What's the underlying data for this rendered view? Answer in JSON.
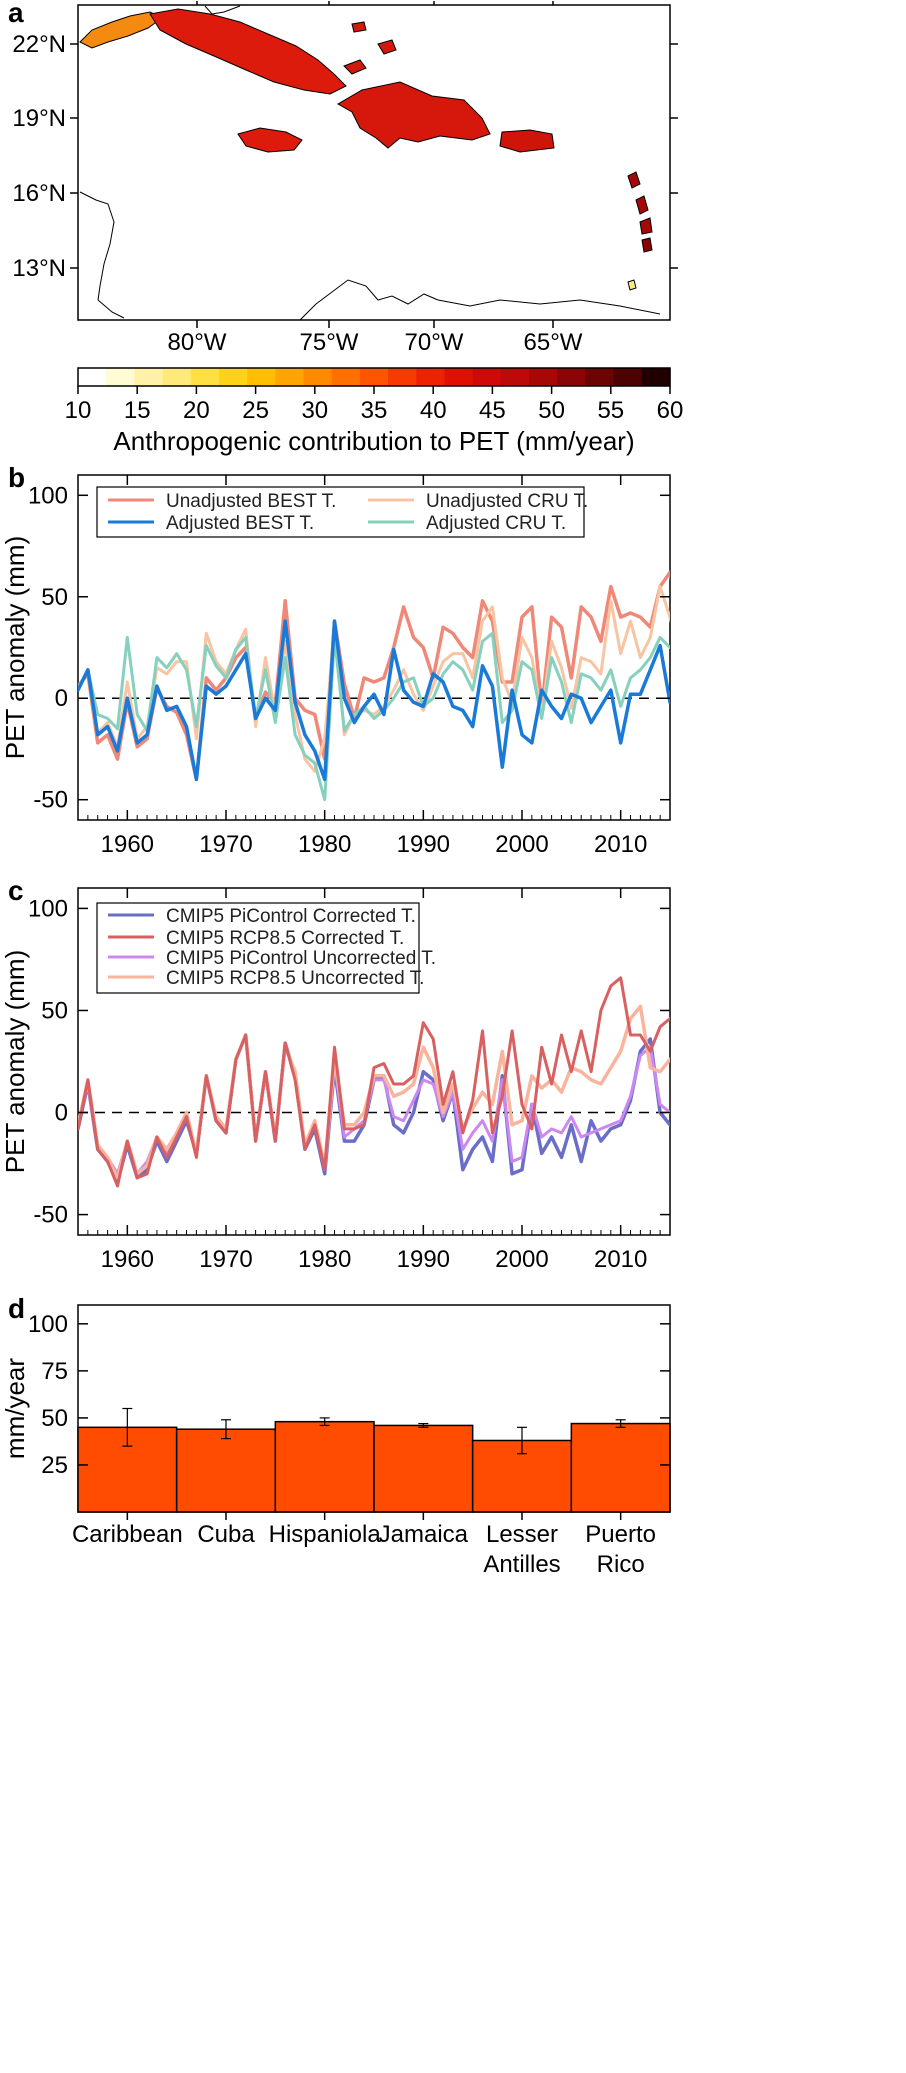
{
  "chart_data": [
    {
      "panel_label": "a",
      "type": "heatmap",
      "lat_ticks": [
        "22°N",
        "19°N",
        "16°N",
        "13°N"
      ],
      "lon_ticks": [
        "80°W",
        "75°W",
        "70°W",
        "65°W"
      ],
      "colorbar": {
        "label": "Anthropogenic contribution to PET (mm/year)",
        "range": [
          10,
          60
        ],
        "ticks": [
          10,
          15,
          20,
          25,
          30,
          35,
          40,
          45,
          50,
          55,
          60
        ],
        "colors": [
          "#ffffff",
          "#fffbd4",
          "#fff2a8",
          "#ffe97c",
          "#ffe044",
          "#ffd21a",
          "#ffbf00",
          "#ffa500",
          "#ff8a00",
          "#ff7000",
          "#ff5500",
          "#f83a00",
          "#ee2200",
          "#e01000",
          "#d00808",
          "#bc0a0a",
          "#a60808",
          "#8a0505",
          "#6c0404",
          "#4c0202",
          "#200000"
        ]
      }
    },
    {
      "panel_label": "b",
      "type": "line",
      "ylabel": "PET anomaly (mm)",
      "xlim": [
        1955,
        2015
      ],
      "ylim": [
        -60,
        110
      ],
      "xticks": [
        1960,
        1970,
        1980,
        1990,
        2000,
        2010
      ],
      "yticks": [
        -50,
        0,
        50,
        100
      ],
      "x_start": 1955,
      "series": [
        {
          "name": "Unadjusted BEST T.",
          "color": "#f08878",
          "width": 3.5,
          "values": [
            6,
            12,
            -22,
            -18,
            -30,
            -2,
            -24,
            -20,
            5,
            -4,
            -7,
            -18,
            -40,
            10,
            4,
            10,
            20,
            25,
            -10,
            3,
            -3,
            48,
            0,
            -6,
            -8,
            -30,
            38,
            7,
            -10,
            10,
            8,
            10,
            25,
            45,
            30,
            25,
            10,
            35,
            32,
            25,
            20,
            48,
            38,
            8,
            8,
            40,
            45,
            -5,
            40,
            35,
            10,
            45,
            40,
            28,
            55,
            40,
            42,
            40,
            35,
            55,
            62,
            40,
            50,
            60,
            38,
            52,
            35,
            62
          ]
        },
        {
          "name": "Unadjusted CRU T.",
          "color": "#f8c4a2",
          "width": 3,
          "values": [
            5,
            13,
            -17,
            -12,
            -24,
            8,
            -20,
            -14,
            15,
            12,
            18,
            18,
            -20,
            32,
            18,
            12,
            24,
            34,
            -14,
            20,
            -8,
            28,
            -8,
            -30,
            -36,
            -20,
            34,
            -18,
            -8,
            -6,
            -8,
            -4,
            4,
            14,
            2,
            -6,
            6,
            18,
            22,
            22,
            10,
            38,
            45,
            10,
            -2,
            30,
            20,
            -8,
            28,
            15,
            -5,
            20,
            18,
            12,
            48,
            22,
            38,
            20,
            30,
            55,
            40,
            22,
            44,
            30,
            20,
            42,
            25,
            48
          ]
        },
        {
          "name": "Adjusted CRU T.",
          "color": "#86d0be",
          "width": 3,
          "values": [
            5,
            14,
            -8,
            -10,
            -15,
            30,
            -8,
            -16,
            20,
            15,
            22,
            14,
            -14,
            26,
            16,
            10,
            24,
            30,
            -10,
            14,
            -12,
            20,
            -18,
            -28,
            -32,
            -50,
            30,
            -16,
            -8,
            -4,
            -10,
            -6,
            0,
            8,
            10,
            -4,
            0,
            12,
            18,
            14,
            4,
            28,
            32,
            -12,
            -6,
            18,
            14,
            -10,
            20,
            8,
            -12,
            12,
            10,
            4,
            14,
            -4,
            10,
            14,
            20,
            30,
            25,
            22,
            28,
            20,
            6,
            28,
            -2,
            14
          ]
        },
        {
          "name": "Adjusted BEST T.",
          "color": "#1a7ad8",
          "width": 3.5,
          "values": [
            4,
            14,
            -18,
            -14,
            -26,
            0,
            -22,
            -18,
            6,
            -6,
            -4,
            -14,
            -40,
            6,
            2,
            6,
            14,
            22,
            -10,
            0,
            -6,
            38,
            -2,
            -18,
            -26,
            -40,
            38,
            0,
            -12,
            -4,
            2,
            -8,
            24,
            4,
            -2,
            -4,
            12,
            8,
            -4,
            -6,
            -14,
            16,
            6,
            -34,
            4,
            -18,
            -22,
            4,
            -4,
            -10,
            2,
            0,
            -12,
            -4,
            4,
            -22,
            2,
            2,
            14,
            26,
            -2,
            0,
            -8,
            18,
            -2,
            -2,
            0,
            18
          ]
        }
      ]
    },
    {
      "panel_label": "c",
      "type": "line",
      "ylabel": "PET anomaly (mm)",
      "xlim": [
        1955,
        2015
      ],
      "ylim": [
        -60,
        110
      ],
      "xticks": [
        1960,
        1970,
        1980,
        1990,
        2000,
        2010
      ],
      "yticks": [
        -50,
        0,
        50,
        100
      ],
      "x_start": 1955,
      "series": [
        {
          "name": "CMIP5 PiControl Corrected T.",
          "color": "#6a6ec8",
          "width": 3.5,
          "values": [
            -8,
            14,
            -18,
            -24,
            -34,
            -16,
            -32,
            -28,
            -14,
            -24,
            -14,
            -4,
            -20,
            18,
            -4,
            -10,
            26,
            38,
            -14,
            20,
            -14,
            34,
            18,
            -18,
            -8,
            -30,
            22,
            -14,
            -14,
            -6,
            16,
            18,
            -6,
            -10,
            0,
            20,
            16,
            -4,
            10,
            -28,
            -18,
            -12,
            -24,
            18,
            -30,
            -28,
            4,
            -20,
            -12,
            -22,
            -6,
            -24,
            -4,
            -14,
            -8,
            -6,
            6,
            30,
            36,
            0,
            -6,
            -8,
            14
          ]
        },
        {
          "name": "CMIP5 PiControl Uncorrected T.",
          "color": "#cc88f0",
          "width": 3,
          "values": [
            -6,
            14,
            -16,
            -22,
            -30,
            -14,
            -30,
            -24,
            -12,
            -20,
            -12,
            -2,
            -20,
            18,
            -4,
            -10,
            26,
            38,
            -14,
            20,
            -14,
            34,
            18,
            -16,
            -6,
            -28,
            24,
            -12,
            -8,
            -4,
            16,
            16,
            -2,
            -4,
            6,
            16,
            14,
            -2,
            10,
            -18,
            -10,
            -4,
            -14,
            16,
            -24,
            -22,
            4,
            -12,
            -8,
            -10,
            -2,
            -12,
            -10,
            -8,
            -6,
            -4,
            8,
            28,
            32,
            4,
            0,
            -2,
            14
          ]
        },
        {
          "name": "CMIP5 RCP8.5 Uncorrected T.",
          "color": "#f8b49c",
          "width": 3.5,
          "values": [
            -6,
            16,
            -16,
            -22,
            -32,
            -14,
            -30,
            -26,
            -12,
            -18,
            -10,
            0,
            -20,
            18,
            -2,
            -8,
            26,
            38,
            -14,
            20,
            -12,
            32,
            20,
            -16,
            -4,
            -26,
            26,
            -6,
            -6,
            0,
            18,
            18,
            8,
            10,
            14,
            32,
            22,
            0,
            14,
            -8,
            2,
            10,
            4,
            30,
            -6,
            -4,
            18,
            12,
            16,
            10,
            22,
            20,
            16,
            14,
            22,
            30,
            46,
            52,
            22,
            20,
            26,
            30
          ]
        },
        {
          "name": "CMIP5 RCP8.5 Corrected T.",
          "color": "#d86060",
          "width": 3,
          "values": [
            -8,
            16,
            -18,
            -24,
            -36,
            -14,
            -32,
            -30,
            -12,
            -22,
            -12,
            -2,
            -22,
            18,
            -4,
            -10,
            26,
            38,
            -14,
            20,
            -14,
            34,
            16,
            -18,
            -6,
            -28,
            32,
            -8,
            -8,
            -6,
            22,
            24,
            14,
            14,
            18,
            44,
            36,
            4,
            20,
            -10,
            6,
            40,
            -10,
            8,
            40,
            4,
            -8,
            32,
            14,
            38,
            20,
            40,
            20,
            50,
            62,
            66,
            38,
            38,
            30,
            42,
            46
          ]
        }
      ]
    },
    {
      "panel_label": "d",
      "type": "bar",
      "ylabel": "mm/year",
      "ylim": [
        0,
        110
      ],
      "yticks": [
        25,
        50,
        75,
        100
      ],
      "categories": [
        "Caribbean",
        "Cuba",
        "Hispaniola",
        "Jamaica",
        "Lesser Antilles",
        "Puerto Rico"
      ],
      "values": [
        45,
        44,
        48,
        46,
        38,
        47
      ],
      "error_low": [
        35,
        39,
        46,
        45,
        31,
        45
      ],
      "error_high": [
        55,
        49,
        50,
        47,
        45,
        49
      ],
      "color": "#ff4c00"
    }
  ]
}
